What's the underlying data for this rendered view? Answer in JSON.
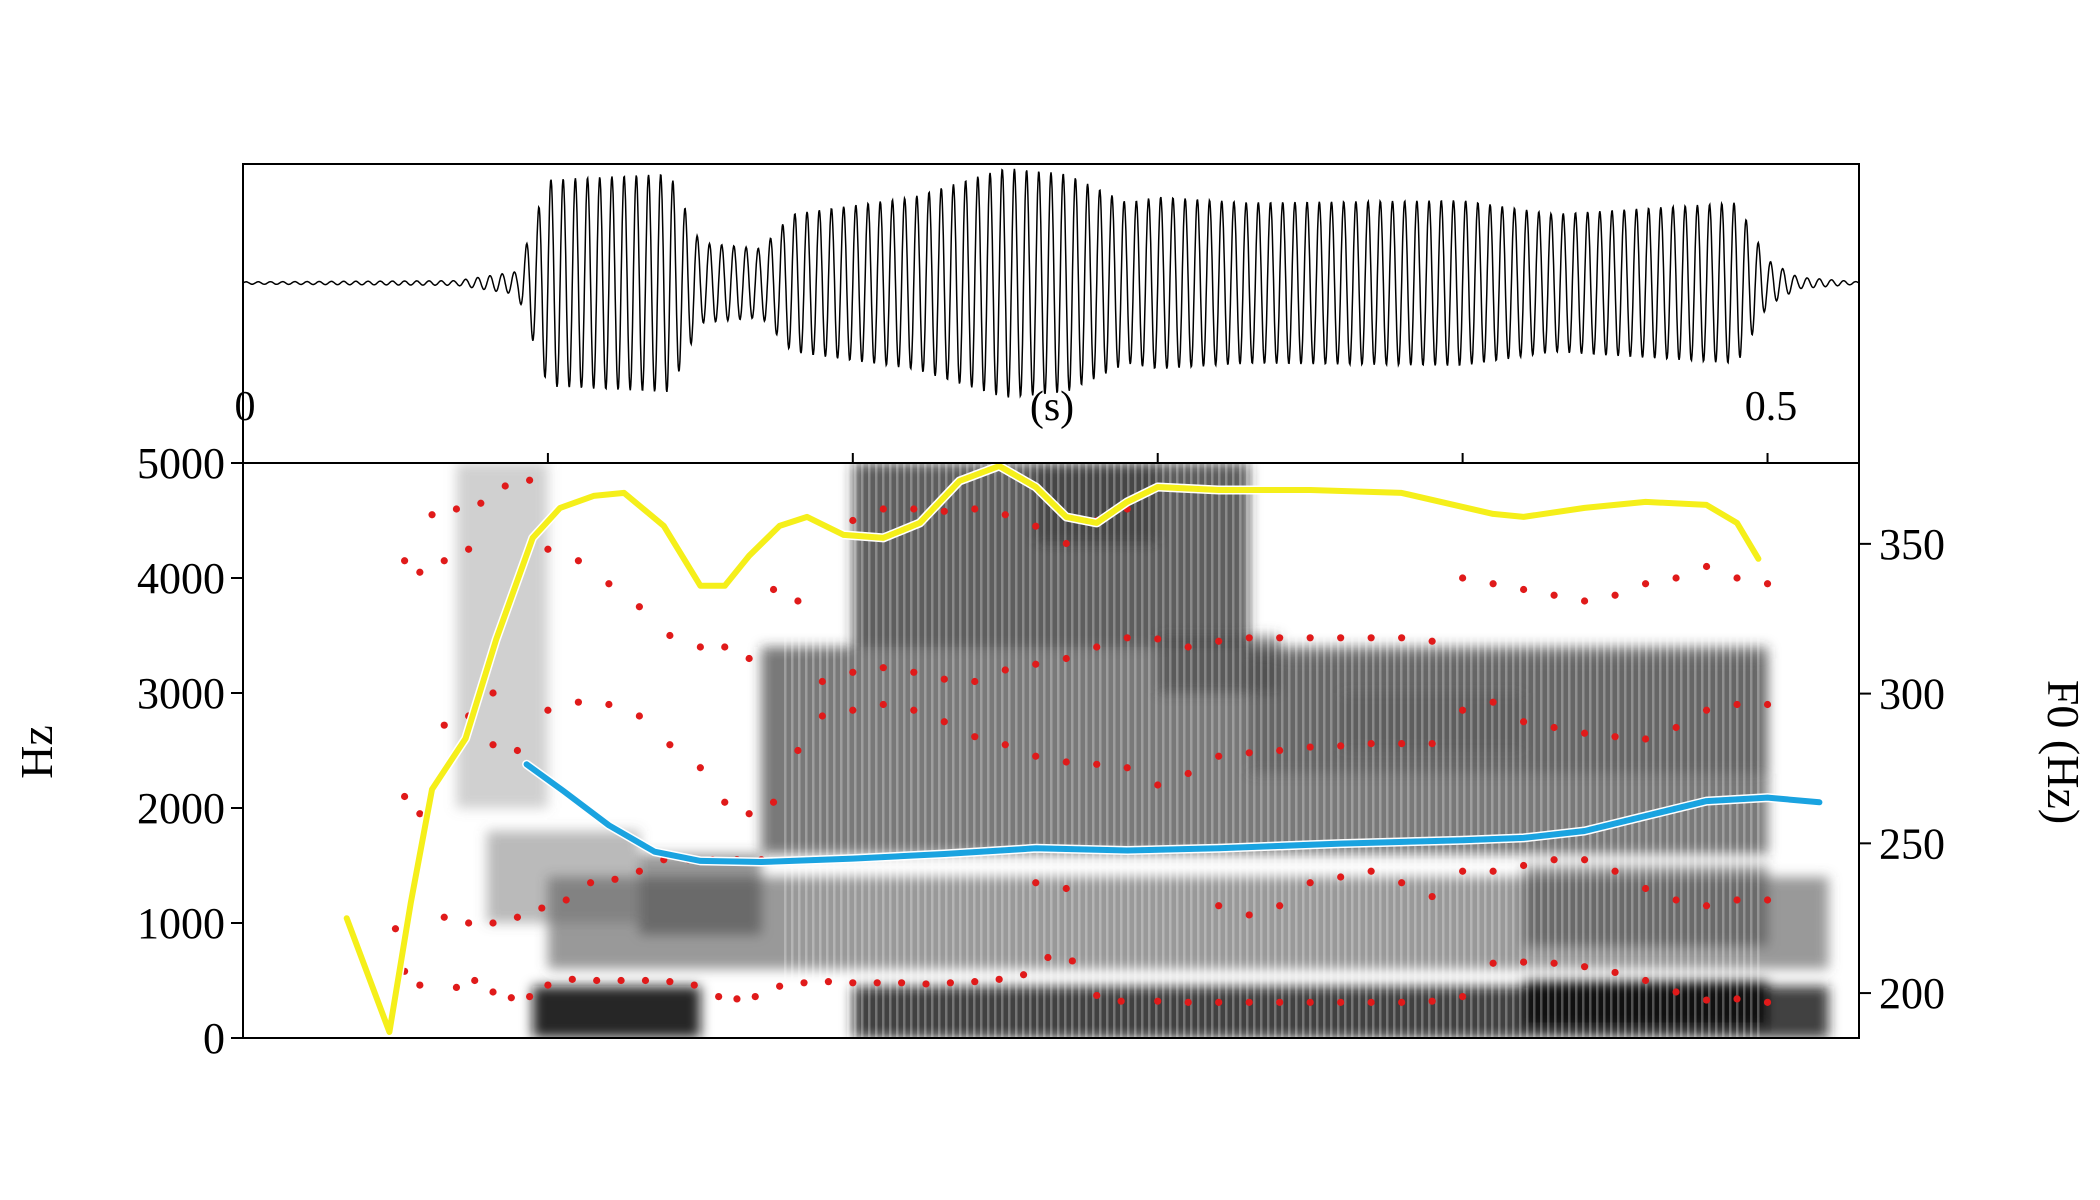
{
  "chart_data": [
    {
      "type": "line",
      "title": "",
      "xlabel": "(s)",
      "ylabel": "",
      "x_tick_labels": [
        "0",
        "0.5"
      ],
      "x_ticks": [
        0,
        0.5
      ],
      "xlim": [
        0,
        0.53
      ],
      "series": [
        {
          "values_description": "waveform amplitude (unlabeled)"
        }
      ]
    },
    {
      "type": "heatmap",
      "title": "",
      "xlabel": "",
      "ylabel": "Hz",
      "y2label": "F0 (Hz)",
      "xlim": [
        0,
        0.53
      ],
      "ylim": [
        0,
        5000
      ],
      "y_ticks": [
        0,
        1000,
        2000,
        3000,
        4000,
        5000
      ],
      "y_tick_labels": [
        "0",
        "1000",
        "2000",
        "3000",
        "4000",
        "5000"
      ],
      "y2lim": [
        185,
        377
      ],
      "y2_ticks": [
        200,
        250,
        300,
        350
      ],
      "y2_tick_labels": [
        "200",
        "250",
        "300",
        "350"
      ],
      "series": [
        {
          "axis": "right",
          "color": "#f5ef1a",
          "x": [
            0.034,
            0.048,
            0.055,
            0.062,
            0.073,
            0.083,
            0.095,
            0.104,
            0.115,
            0.125,
            0.138,
            0.15,
            0.158,
            0.166,
            0.176,
            0.185,
            0.197,
            0.21,
            0.222,
            0.235,
            0.248,
            0.26,
            0.27,
            0.28,
            0.29,
            0.3,
            0.32,
            0.35,
            0.38,
            0.41,
            0.42,
            0.44,
            0.46,
            0.48,
            0.49,
            0.497
          ],
          "y": [
            225,
            187,
            230,
            268,
            285,
            318,
            352,
            362,
            366,
            367,
            356,
            336,
            336,
            346,
            356,
            359,
            353,
            352,
            357,
            371,
            376,
            369,
            359,
            357,
            364,
            369,
            368,
            368,
            367,
            360,
            359,
            362,
            364,
            363,
            357,
            345
          ]
        },
        {
          "axis": "left",
          "color": "#1aa3e0",
          "x": [
            0.093,
            0.105,
            0.12,
            0.135,
            0.15,
            0.17,
            0.2,
            0.23,
            0.26,
            0.29,
            0.32,
            0.36,
            0.4,
            0.42,
            0.44,
            0.46,
            0.48,
            0.5,
            0.517
          ],
          "y": [
            2380,
            2150,
            1850,
            1620,
            1540,
            1530,
            1560,
            1600,
            1650,
            1630,
            1650,
            1690,
            1720,
            1740,
            1800,
            1930,
            2060,
            2090,
            2050
          ]
        }
      ],
      "formants_color": "#e01a1a",
      "formants": [
        {
          "x": [
            0.053,
            0.058,
            0.07,
            0.076,
            0.082,
            0.088,
            0.094,
            0.1,
            0.108,
            0.116,
            0.124,
            0.132,
            0.14,
            0.148,
            0.156,
            0.162,
            0.168,
            0.176,
            0.184,
            0.192,
            0.2,
            0.208,
            0.216,
            0.224,
            0.232,
            0.24,
            0.248,
            0.256,
            0.264,
            0.272,
            0.28,
            0.288,
            0.3,
            0.31,
            0.32,
            0.33,
            0.34,
            0.35,
            0.36,
            0.37,
            0.38,
            0.39,
            0.4,
            0.41,
            0.42,
            0.43,
            0.44,
            0.45,
            0.46,
            0.47,
            0.48,
            0.49,
            0.5
          ],
          "y": [
            580,
            460,
            440,
            500,
            400,
            350,
            360,
            460,
            510,
            500,
            500,
            500,
            490,
            460,
            360,
            340,
            360,
            450,
            480,
            490,
            480,
            480,
            480,
            470,
            480,
            490,
            510,
            550,
            700,
            670,
            370,
            320,
            320,
            310,
            310,
            310,
            310,
            310,
            310,
            310,
            310,
            320,
            360,
            650,
            660,
            650,
            620,
            570,
            500,
            400,
            330,
            340,
            310
          ]
        },
        {
          "x": [
            0.05,
            0.054,
            0.066,
            0.074,
            0.082,
            0.09,
            0.098,
            0.106,
            0.114,
            0.122,
            0.13,
            0.138,
            0.146,
            0.154,
            0.162,
            0.17,
            0.26,
            0.27,
            0.32,
            0.33,
            0.34,
            0.35,
            0.36,
            0.37,
            0.38,
            0.39,
            0.4,
            0.41,
            0.42,
            0.43,
            0.44,
            0.45,
            0.46,
            0.47,
            0.48,
            0.49,
            0.5
          ],
          "y": [
            950,
            1000,
            1050,
            1000,
            1000,
            1050,
            1130,
            1200,
            1350,
            1380,
            1450,
            1550,
            1550,
            1550,
            1550,
            1550,
            1350,
            1300,
            1150,
            1070,
            1150,
            1350,
            1400,
            1450,
            1350,
            1230,
            1450,
            1450,
            1500,
            1550,
            1550,
            1450,
            1300,
            1200,
            1150,
            1200,
            1200
          ]
        },
        {
          "x": [
            0.053,
            0.058,
            0.066,
            0.074,
            0.082,
            0.09,
            0.1,
            0.11,
            0.12,
            0.13,
            0.14,
            0.15,
            0.158,
            0.166,
            0.174,
            0.182,
            0.19,
            0.2,
            0.21,
            0.22,
            0.23,
            0.24,
            0.25,
            0.26,
            0.27,
            0.28,
            0.29,
            0.3,
            0.31,
            0.32,
            0.33,
            0.34,
            0.35,
            0.36,
            0.37,
            0.38,
            0.39,
            0.4,
            0.41,
            0.42,
            0.43,
            0.44,
            0.45,
            0.46,
            0.47,
            0.48,
            0.49,
            0.5
          ],
          "y": [
            2100,
            1950,
            2720,
            2800,
            2550,
            2500,
            2850,
            2920,
            2900,
            2800,
            2550,
            2350,
            2050,
            1950,
            2050,
            2500,
            2800,
            2850,
            2900,
            2850,
            2750,
            2620,
            2550,
            2450,
            2400,
            2380,
            2350,
            2200,
            2300,
            2450,
            2480,
            2500,
            2530,
            2540,
            2560,
            2560,
            2560,
            2850,
            2920,
            2750,
            2700,
            2650,
            2620,
            2600,
            2700,
            2850,
            2900,
            2900
          ]
        },
        {
          "x": [
            0.053,
            0.058,
            0.066,
            0.074,
            0.082,
            0.1,
            0.11,
            0.12,
            0.13,
            0.14,
            0.15,
            0.158,
            0.166,
            0.174,
            0.182,
            0.19,
            0.2,
            0.21,
            0.22,
            0.23,
            0.24,
            0.25,
            0.26,
            0.27,
            0.28,
            0.29,
            0.3,
            0.31,
            0.32,
            0.33,
            0.34,
            0.35,
            0.36,
            0.37,
            0.38,
            0.39,
            0.4,
            0.41,
            0.42,
            0.43,
            0.44,
            0.45,
            0.46,
            0.47,
            0.48,
            0.49,
            0.5
          ],
          "y": [
            4150,
            4050,
            4150,
            4250,
            3000,
            4250,
            4150,
            3950,
            3750,
            3500,
            3400,
            3400,
            3300,
            3900,
            3800,
            3100,
            3180,
            3220,
            3180,
            3120,
            3100,
            3200,
            3250,
            3300,
            3400,
            3480,
            3470,
            3400,
            3450,
            3480,
            3480,
            3480,
            3480,
            3480,
            3480,
            3450,
            4000,
            3950,
            3900,
            3850,
            3800,
            3850,
            3950,
            4000,
            4100,
            4000,
            3950
          ]
        },
        {
          "x": [
            0.062,
            0.07,
            0.078,
            0.086,
            0.094,
            0.2,
            0.21,
            0.22,
            0.23,
            0.24,
            0.25,
            0.26,
            0.27,
            0.28,
            0.29
          ],
          "y": [
            4550,
            4600,
            4650,
            4800,
            4850,
            4500,
            4600,
            4600,
            4580,
            4600,
            4550,
            4450,
            4300,
            4500,
            4600
          ]
        }
      ]
    }
  ]
}
